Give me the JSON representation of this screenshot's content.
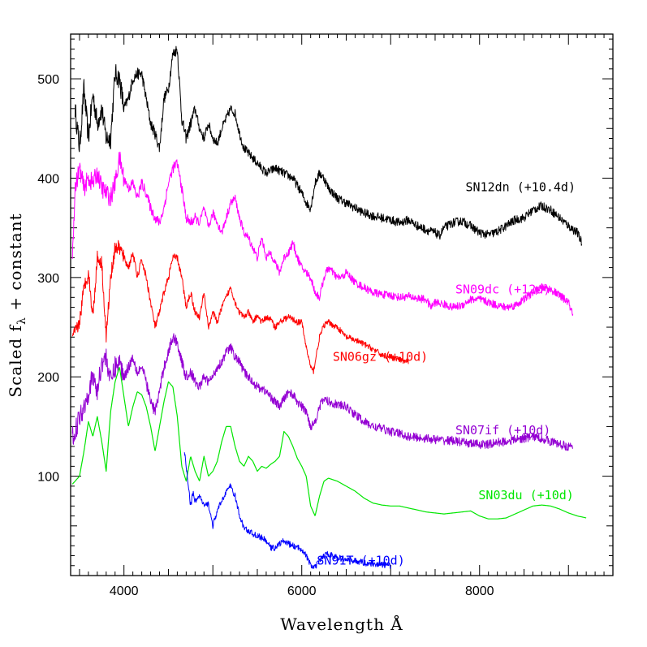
{
  "chart_data": {
    "type": "line",
    "title": "",
    "xlabel": "Wavelength Å",
    "ylabel": "Scaled f",
    "ylabel_subscript": "λ",
    "ylabel_suffix": " + constant",
    "xlim": [
      3400,
      9500
    ],
    "ylim": [
      0,
      545
    ],
    "x_ticks": [
      4000,
      6000,
      8000
    ],
    "y_ticks": [
      100,
      200,
      300,
      400,
      500
    ],
    "grid": false,
    "legend": "none",
    "series": [
      {
        "name": "SN12dn (+10.4d)",
        "color": "#000000",
        "noise": 9,
        "x": [
          3450,
          3500,
          3550,
          3600,
          3650,
          3700,
          3750,
          3800,
          3850,
          3900,
          3950,
          4000,
          4050,
          4100,
          4150,
          4200,
          4250,
          4300,
          4350,
          4400,
          4450,
          4500,
          4550,
          4600,
          4650,
          4700,
          4750,
          4800,
          4850,
          4900,
          4950,
          5000,
          5050,
          5100,
          5150,
          5200,
          5250,
          5300,
          5350,
          5400,
          5450,
          5500,
          5600,
          5700,
          5800,
          5900,
          6000,
          6050,
          6100,
          6150,
          6200,
          6250,
          6300,
          6350,
          6400,
          6500,
          6600,
          6700,
          6800,
          6900,
          7000,
          7100,
          7200,
          7300,
          7400,
          7500,
          7550,
          7600,
          7700,
          7800,
          7900,
          8000,
          8100,
          8200,
          8300,
          8400,
          8500,
          8600,
          8700,
          8800,
          8900,
          9000,
          9100,
          9150
        ],
        "y": [
          470,
          430,
          490,
          440,
          485,
          455,
          470,
          440,
          440,
          505,
          500,
          470,
          480,
          500,
          505,
          505,
          480,
          455,
          445,
          430,
          480,
          490,
          525,
          530,
          460,
          440,
          455,
          470,
          450,
          440,
          455,
          440,
          435,
          450,
          460,
          470,
          465,
          445,
          430,
          425,
          420,
          415,
          405,
          410,
          405,
          400,
          385,
          375,
          370,
          395,
          405,
          400,
          390,
          385,
          380,
          375,
          370,
          365,
          362,
          360,
          358,
          355,
          358,
          352,
          348,
          345,
          342,
          350,
          355,
          357,
          352,
          345,
          343,
          346,
          352,
          358,
          360,
          368,
          372,
          368,
          360,
          352,
          345,
          335
        ]
      },
      {
        "name": "SN09dc (+12d)",
        "color": "#ff00ff",
        "noise": 8,
        "x": [
          3420,
          3450,
          3500,
          3550,
          3600,
          3650,
          3700,
          3750,
          3800,
          3850,
          3900,
          3950,
          4000,
          4050,
          4100,
          4150,
          4200,
          4250,
          4300,
          4350,
          4400,
          4450,
          4500,
          4550,
          4600,
          4650,
          4700,
          4750,
          4800,
          4850,
          4900,
          4950,
          5000,
          5050,
          5100,
          5150,
          5200,
          5250,
          5300,
          5350,
          5400,
          5450,
          5500,
          5550,
          5600,
          5650,
          5700,
          5750,
          5800,
          5850,
          5900,
          5950,
          6000,
          6100,
          6150,
          6200,
          6250,
          6300,
          6350,
          6400,
          6450,
          6500,
          6600,
          6700,
          6800,
          6900,
          7000,
          7100,
          7200,
          7300,
          7400,
          7450,
          7500,
          7600,
          7700,
          7800,
          7900,
          8000,
          8100,
          8200,
          8300,
          8400,
          8500,
          8600,
          8700,
          8800,
          8900,
          9000,
          9050
        ],
        "y": [
          320,
          390,
          410,
          390,
          400,
          395,
          405,
          390,
          385,
          380,
          395,
          420,
          400,
          390,
          395,
          380,
          395,
          385,
          370,
          360,
          355,
          370,
          395,
          410,
          415,
          390,
          360,
          355,
          360,
          355,
          370,
          350,
          365,
          355,
          345,
          360,
          375,
          380,
          360,
          345,
          340,
          330,
          320,
          340,
          320,
          325,
          315,
          305,
          320,
          325,
          335,
          320,
          310,
          300,
          285,
          280,
          300,
          310,
          305,
          300,
          300,
          305,
          295,
          290,
          285,
          283,
          282,
          280,
          281,
          279,
          278,
          270,
          275,
          273,
          270,
          272,
          278,
          278,
          275,
          272,
          270,
          272,
          278,
          285,
          290,
          288,
          282,
          275,
          262
        ]
      },
      {
        "name": "SN06gz (+10d)",
        "color": "#ff0000",
        "noise": 6,
        "x": [
          3420,
          3500,
          3550,
          3600,
          3650,
          3700,
          3750,
          3800,
          3850,
          3900,
          3950,
          4000,
          4050,
          4100,
          4150,
          4200,
          4250,
          4300,
          4350,
          4400,
          4450,
          4500,
          4550,
          4600,
          4650,
          4700,
          4750,
          4800,
          4850,
          4900,
          4950,
          5000,
          5050,
          5100,
          5150,
          5200,
          5250,
          5300,
          5350,
          5400,
          5450,
          5500,
          5550,
          5600,
          5650,
          5700,
          5750,
          5800,
          5850,
          5900,
          5950,
          6000,
          6050,
          6100,
          6130,
          6150,
          6200,
          6250,
          6300,
          6350,
          6400,
          6450,
          6500,
          6600,
          6700,
          6800,
          6900,
          7000,
          7100,
          7200
        ],
        "y": [
          238,
          255,
          290,
          305,
          260,
          320,
          315,
          240,
          300,
          330,
          330,
          320,
          310,
          325,
          300,
          318,
          300,
          275,
          250,
          265,
          285,
          300,
          320,
          320,
          300,
          270,
          285,
          265,
          260,
          285,
          250,
          265,
          255,
          270,
          280,
          290,
          275,
          265,
          260,
          265,
          255,
          262,
          255,
          260,
          258,
          250,
          255,
          258,
          260,
          258,
          255,
          255,
          230,
          210,
          205,
          215,
          240,
          252,
          255,
          252,
          250,
          245,
          240,
          237,
          233,
          228,
          222,
          220,
          217,
          215
        ]
      },
      {
        "name": "SN07if (+10d)",
        "color": "#9400d3",
        "noise": 9,
        "x": [
          3420,
          3450,
          3500,
          3550,
          3600,
          3650,
          3700,
          3750,
          3800,
          3850,
          3900,
          3950,
          4000,
          4050,
          4100,
          4150,
          4200,
          4250,
          4300,
          4350,
          4400,
          4450,
          4500,
          4550,
          4600,
          4650,
          4700,
          4750,
          4800,
          4850,
          4900,
          4950,
          5000,
          5050,
          5100,
          5150,
          5200,
          5250,
          5300,
          5350,
          5400,
          5450,
          5500,
          5550,
          5600,
          5650,
          5700,
          5750,
          5800,
          5850,
          5900,
          5950,
          6000,
          6050,
          6100,
          6150,
          6200,
          6250,
          6300,
          6400,
          6500,
          6600,
          6700,
          6800,
          6900,
          7000,
          7100,
          7200,
          7300,
          7400,
          7500,
          7600,
          7700,
          7800,
          7900,
          8000,
          8100,
          8200,
          8300,
          8400,
          8500,
          8600,
          8700,
          8800,
          8900,
          9000,
          9050
        ],
        "y": [
          140,
          145,
          160,
          170,
          185,
          200,
          185,
          215,
          220,
          195,
          210,
          215,
          200,
          210,
          220,
          205,
          210,
          195,
          175,
          165,
          185,
          210,
          225,
          240,
          235,
          215,
          200,
          205,
          195,
          190,
          200,
          195,
          200,
          210,
          215,
          225,
          230,
          220,
          215,
          205,
          200,
          195,
          190,
          188,
          185,
          180,
          175,
          170,
          178,
          185,
          182,
          175,
          170,
          165,
          150,
          155,
          170,
          178,
          175,
          172,
          170,
          162,
          155,
          150,
          148,
          145,
          143,
          140,
          139,
          138,
          137,
          136,
          136,
          134,
          133,
          132,
          132,
          134,
          135,
          137,
          138,
          140,
          138,
          135,
          132,
          130,
          128
        ]
      },
      {
        "name": "SN03du (+10d)",
        "color": "#00e600",
        "noise": 0,
        "x": [
          3420,
          3450,
          3500,
          3550,
          3600,
          3650,
          3700,
          3750,
          3800,
          3850,
          3900,
          3950,
          4000,
          4050,
          4100,
          4150,
          4200,
          4250,
          4300,
          4350,
          4400,
          4450,
          4500,
          4550,
          4600,
          4650,
          4700,
          4750,
          4800,
          4850,
          4900,
          4950,
          5000,
          5050,
          5100,
          5150,
          5200,
          5250,
          5300,
          5350,
          5400,
          5450,
          5500,
          5550,
          5600,
          5650,
          5700,
          5750,
          5800,
          5850,
          5900,
          5950,
          6000,
          6050,
          6100,
          6150,
          6200,
          6250,
          6300,
          6400,
          6500,
          6600,
          6700,
          6800,
          6900,
          7000,
          7100,
          7200,
          7300,
          7400,
          7500,
          7600,
          7700,
          7800,
          7900,
          8000,
          8100,
          8200,
          8300,
          8400,
          8500,
          8600,
          8700,
          8800,
          8900,
          9000,
          9100,
          9200
        ],
        "y": [
          92,
          95,
          100,
          125,
          155,
          140,
          160,
          135,
          105,
          165,
          195,
          210,
          180,
          150,
          170,
          185,
          182,
          170,
          150,
          125,
          150,
          175,
          195,
          190,
          160,
          110,
          95,
          120,
          105,
          95,
          120,
          100,
          105,
          115,
          135,
          150,
          150,
          130,
          115,
          110,
          120,
          115,
          105,
          110,
          108,
          112,
          115,
          120,
          145,
          140,
          130,
          118,
          110,
          100,
          70,
          60,
          80,
          95,
          98,
          95,
          90,
          85,
          78,
          73,
          71,
          70,
          70,
          68,
          66,
          64,
          63,
          62,
          63,
          64,
          65,
          60,
          57,
          57,
          58,
          62,
          66,
          70,
          71,
          70,
          67,
          63,
          60,
          58
        ]
      },
      {
        "name": "SN91T (+10d)",
        "color": "#0000ff",
        "noise": 6,
        "x": [
          4680,
          4700,
          4720,
          4750,
          4780,
          4800,
          4850,
          4900,
          4950,
          5000,
          5050,
          5100,
          5150,
          5200,
          5250,
          5300,
          5350,
          5400,
          5450,
          5500,
          5550,
          5600,
          5650,
          5700,
          5750,
          5800,
          5850,
          5900,
          5950,
          6000,
          6050,
          6100,
          6150,
          6200,
          6250,
          6300,
          6400,
          6500,
          6600,
          6700,
          6800,
          6900,
          7000
        ],
        "y": [
          125,
          110,
          95,
          70,
          85,
          75,
          80,
          70,
          72,
          50,
          65,
          75,
          85,
          90,
          80,
          60,
          48,
          45,
          42,
          40,
          38,
          35,
          28,
          28,
          32,
          35,
          32,
          30,
          28,
          27,
          20,
          10,
          8,
          15,
          20,
          22,
          18,
          16,
          15,
          13,
          12,
          11,
          10
        ]
      }
    ],
    "label_y": [
      387,
      284,
      216,
      142,
      77,
      11
    ],
    "label_x": [
      9080,
      8800,
      7420,
      8800,
      9060,
      7160
    ]
  }
}
